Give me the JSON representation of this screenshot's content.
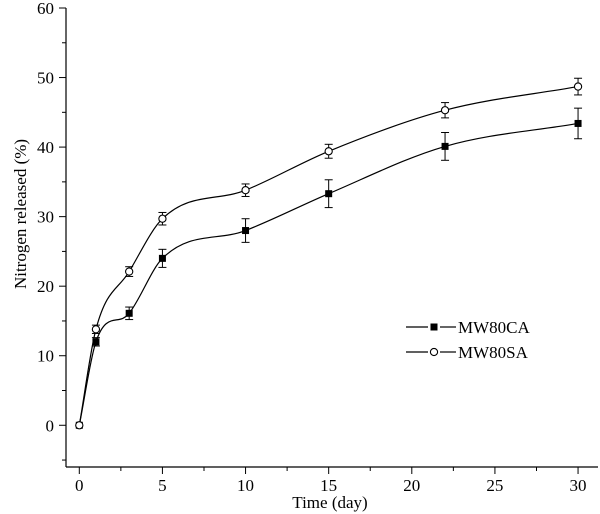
{
  "chart_data": {
    "type": "line",
    "xlabel": "Time (day)",
    "ylabel": "Nitrogen released (%)",
    "xlim": [
      -0.8,
      31.2
    ],
    "ylim": [
      -6,
      60
    ],
    "x_ticks": [
      0,
      5,
      10,
      15,
      20,
      25,
      30
    ],
    "y_ticks": [
      0,
      10,
      20,
      30,
      40,
      50,
      60
    ],
    "x_tick_labels": [
      "0",
      "5",
      "10",
      "15",
      "20",
      "25",
      "30"
    ],
    "y_tick_labels": [
      "0",
      "10",
      "20",
      "30",
      "40",
      "50",
      "60"
    ],
    "grid": false,
    "legend_position": "center-right",
    "series": [
      {
        "name": "MW80CA",
        "marker": "filled-square",
        "color": "#000000",
        "x": [
          0,
          1,
          3,
          5,
          10,
          15,
          22,
          30
        ],
        "y": [
          0,
          12.0,
          16.1,
          24.0,
          28.0,
          33.3,
          40.1,
          43.4
        ],
        "err": [
          0,
          0.6,
          0.9,
          1.3,
          1.7,
          2.0,
          2.0,
          2.2
        ]
      },
      {
        "name": "MW80SA",
        "marker": "open-circle",
        "color": "#000000",
        "x": [
          0,
          1,
          3,
          5,
          10,
          15,
          22,
          30
        ],
        "y": [
          0,
          13.8,
          22.1,
          29.7,
          33.8,
          39.4,
          45.3,
          48.7
        ],
        "err": [
          0,
          0.6,
          0.7,
          0.9,
          0.9,
          1.0,
          1.1,
          1.2
        ]
      }
    ]
  }
}
